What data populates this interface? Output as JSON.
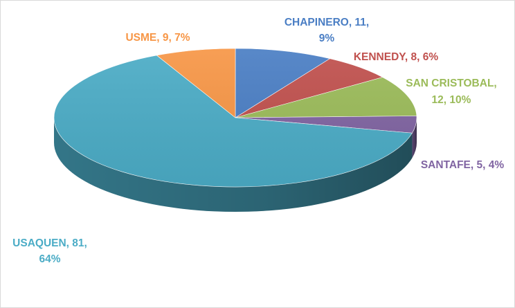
{
  "chart_data": {
    "type": "pie",
    "style": "3d",
    "title": "",
    "legend": "none",
    "slices": [
      {
        "label": "CHAPINERO",
        "value": 11,
        "percent": "9%",
        "color": "#4a7ec4",
        "text_color": "#4a7ec4",
        "line1": "CHAPINERO, 11,",
        "line2": "9%"
      },
      {
        "label": "KENNEDY",
        "value": 8,
        "percent": "6%",
        "color": "#c0504d",
        "text_color": "#c0504d",
        "line1": "KENNEDY, 8, 6%",
        "line2": ""
      },
      {
        "label": "SAN CRISTOBAL",
        "value": 12,
        "percent": "10%",
        "color": "#9bbb59",
        "text_color": "#9bbb59",
        "line1": "SAN CRISTOBAL,",
        "line2": "12, 10%"
      },
      {
        "label": "SANTAFE",
        "value": 5,
        "percent": "4%",
        "color": "#8064a2",
        "text_color": "#8064a2",
        "line1": "SANTAFE, 5, 4%",
        "line2": ""
      },
      {
        "label": "USAQUEN",
        "value": 81,
        "percent": "64%",
        "color": "#4bacc6",
        "text_color": "#4bacc6",
        "line1": "USAQUEN, 81,",
        "line2": "64%"
      },
      {
        "label": "USME",
        "value": 9,
        "percent": "7%",
        "color": "#f79646",
        "text_color": "#f79646",
        "line1": "USME, 9, 7%",
        "line2": ""
      }
    ]
  }
}
